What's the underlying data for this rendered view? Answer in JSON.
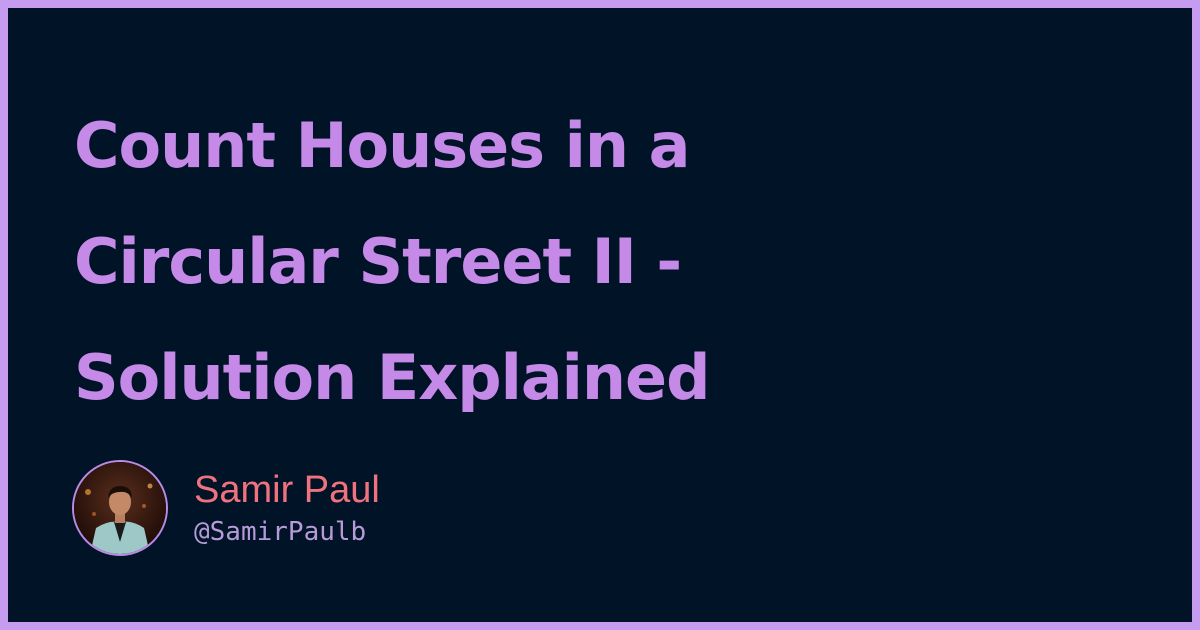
{
  "title_lines": [
    "Count Houses in a",
    "Circular Street II -",
    "Solution Explained"
  ],
  "author": {
    "name": "Samir Paul",
    "handle": "@SamirPaulb"
  },
  "colors": {
    "frame": "#c59cf0",
    "background": "#011327",
    "title": "#c589e8",
    "name": "#f0727e",
    "handle": "#b79bd9"
  }
}
